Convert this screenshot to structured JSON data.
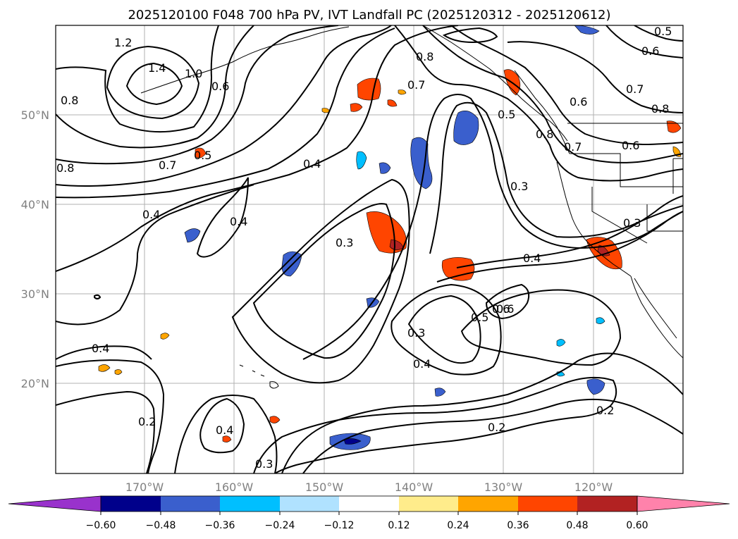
{
  "title": "2025120100 F048 700 hPa PV, IVT Landfall PC (2025120312 - 2025120612)",
  "axes": {
    "lat_labels": [
      "50°N",
      "40°N",
      "30°N",
      "20°N"
    ],
    "lon_labels": [
      "170°W",
      "160°W",
      "150°W",
      "140°W",
      "130°W",
      "120°W"
    ]
  },
  "colorbar": {
    "ticks": [
      "−0.60",
      "−0.48",
      "−0.36",
      "−0.24",
      "−0.12",
      "0.12",
      "0.24",
      "0.36",
      "0.48",
      "0.60"
    ],
    "colors": {
      "lt_neg_extend": "#9932CC",
      "neg_060_048": "#00008B",
      "neg_048_036": "#3A5FCD",
      "neg_036_024": "#00BFFF",
      "neg_024_012": "#B0E2FF",
      "zero": "#FFFFFF",
      "pos_012_024": "#FFEC8B",
      "pos_024_036": "#FFA500",
      "pos_036_048": "#FF4500",
      "pos_048_060": "#B22222",
      "gt_pos_extend": "#FF82AB"
    }
  },
  "contour_labels": [
    {
      "text": "1.2"
    },
    {
      "text": "1.4"
    },
    {
      "text": "1.0"
    },
    {
      "text": "0.6"
    },
    {
      "text": "0.8"
    },
    {
      "text": "0.7"
    },
    {
      "text": "0.5"
    },
    {
      "text": "0.8"
    },
    {
      "text": "0.4"
    },
    {
      "text": "0.4"
    },
    {
      "text": "0.4"
    },
    {
      "text": "0.3"
    },
    {
      "text": "0.7"
    },
    {
      "text": "0.8"
    },
    {
      "text": "0.5"
    },
    {
      "text": "0.8"
    },
    {
      "text": "0.7"
    },
    {
      "text": "0.6"
    },
    {
      "text": "0.6"
    },
    {
      "text": "0.5"
    },
    {
      "text": "0.6"
    },
    {
      "text": "0.7"
    },
    {
      "text": "0.8"
    },
    {
      "text": "0.6"
    },
    {
      "text": "0.3"
    },
    {
      "text": "0.3"
    },
    {
      "text": "0.4"
    },
    {
      "text": "0.6"
    },
    {
      "text": "0.5"
    },
    {
      "text": "0.3"
    },
    {
      "text": "0.4"
    },
    {
      "text": "0.4"
    },
    {
      "text": "0.2"
    },
    {
      "text": "0.4"
    },
    {
      "text": "0.2"
    },
    {
      "text": "0.3"
    },
    {
      "text": "0.2"
    }
  ]
}
